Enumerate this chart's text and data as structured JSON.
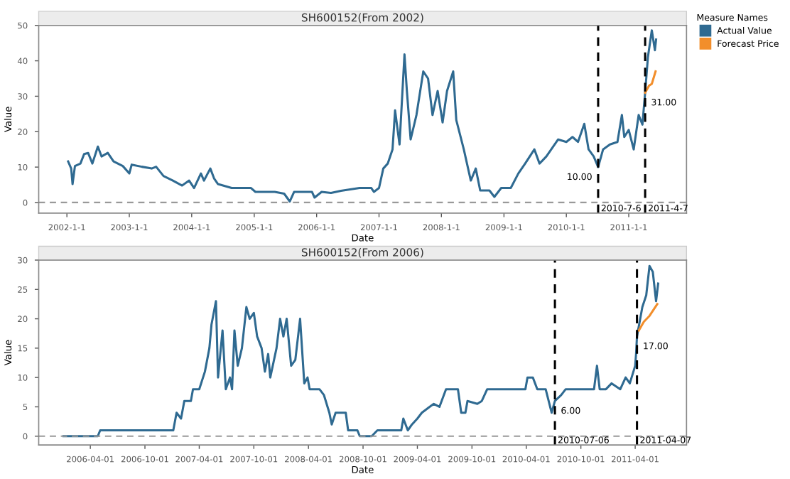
{
  "chart_data": [
    {
      "type": "line",
      "title": "SH600152(From 2002)",
      "xlabel": "Date",
      "ylabel": "Value",
      "legend_title": "Measure Names",
      "legend": "right",
      "xlim": [
        "2001-07-20",
        "2011-12-05"
      ],
      "xticks": [
        {
          "value": "2002-01-01",
          "label": "2002-1-1"
        },
        {
          "value": "2003-01-01",
          "label": "2003-1-1"
        },
        {
          "value": "2004-01-01",
          "label": "2004-1-1"
        },
        {
          "value": "2005-01-01",
          "label": "2005-1-1"
        },
        {
          "value": "2006-01-01",
          "label": "2006-1-1"
        },
        {
          "value": "2007-01-01",
          "label": "2007-1-1"
        },
        {
          "value": "2008-01-01",
          "label": "2008-1-1"
        },
        {
          "value": "2009-01-01",
          "label": "2009-1-1"
        },
        {
          "value": "2010-01-01",
          "label": "2010-1-1"
        },
        {
          "value": "2011-01-01",
          "label": "2011-1-1"
        }
      ],
      "ylim": [
        -3,
        50
      ],
      "yticks": [
        0,
        10,
        20,
        30,
        40,
        50
      ],
      "grid": false,
      "series": [
        {
          "name": "Actual Value",
          "color": "#2f6a91",
          "x": [
            "2002-01-08",
            "2002-01-26",
            "2002-02-03",
            "2002-02-17",
            "2002-03-21",
            "2002-04-12",
            "2002-05-05",
            "2002-05-30",
            "2002-07-01",
            "2002-07-23",
            "2002-08-28",
            "2002-10-01",
            "2002-11-24",
            "2003-01-01",
            "2003-01-15",
            "2003-03-15",
            "2003-05-12",
            "2003-06-07",
            "2003-07-20",
            "2003-09-13",
            "2003-11-06",
            "2003-12-17",
            "2004-01-15",
            "2004-02-24",
            "2004-03-13",
            "2004-04-19",
            "2004-05-11",
            "2004-06-03",
            "2004-08-22",
            "2004-12-13",
            "2005-01-08",
            "2005-05-01",
            "2005-06-25",
            "2005-07-28",
            "2005-08-22",
            "2005-12-05",
            "2005-12-20",
            "2006-01-30",
            "2006-03-26",
            "2006-05-23",
            "2006-09-09",
            "2006-11-17",
            "2006-12-02",
            "2007-01-01",
            "2007-01-26",
            "2007-02-21",
            "2007-03-21",
            "2007-04-05",
            "2007-05-01",
            "2007-05-30",
            "2007-06-13",
            "2007-07-05",
            "2007-08-08",
            "2007-09-17",
            "2007-10-15",
            "2007-11-10",
            "2007-12-10",
            "2008-01-08",
            "2008-02-03",
            "2008-03-10",
            "2008-03-28",
            "2008-05-11",
            "2008-06-21",
            "2008-07-20",
            "2008-08-15",
            "2008-10-08",
            "2008-11-06",
            "2008-12-16",
            "2009-02-10",
            "2009-03-26",
            "2009-05-05",
            "2009-06-28",
            "2009-07-28",
            "2009-09-06",
            "2009-11-14",
            "2010-01-01",
            "2010-02-06",
            "2010-03-10",
            "2010-04-16",
            "2010-05-11",
            "2010-06-10",
            "2010-07-06",
            "2010-08-04",
            "2010-09-13",
            "2010-10-27",
            "2010-11-22",
            "2010-12-06",
            "2011-01-01",
            "2011-01-30",
            "2011-02-28",
            "2011-03-22",
            "2011-04-07",
            "2011-04-23",
            "2011-05-16",
            "2011-06-03",
            "2011-06-10"
          ],
          "values": [
            11.6,
            9.6,
            5.2,
            10.3,
            11,
            13.7,
            14,
            11,
            15.8,
            13,
            14,
            11.6,
            10.3,
            8.2,
            10.7,
            10.1,
            9.6,
            10.1,
            7.5,
            6.2,
            4.8,
            6.2,
            4.1,
            8.2,
            6.2,
            9.6,
            6.8,
            5.2,
            4.1,
            4.1,
            3,
            3,
            2.5,
            0.3,
            3,
            3,
            1.4,
            3,
            2.7,
            3.3,
            4.1,
            4.1,
            3,
            4.1,
            9.6,
            11,
            15,
            26,
            16.4,
            41.8,
            31.5,
            17.8,
            24.7,
            37,
            35,
            24.7,
            31.5,
            22.6,
            31.5,
            37,
            23.3,
            15,
            6.2,
            9.6,
            3.4,
            3.4,
            1.6,
            4.1,
            4.1,
            8.2,
            11,
            15,
            11,
            13,
            17.8,
            17.1,
            18.5,
            17.1,
            22.2,
            15,
            13,
            10,
            15,
            16.4,
            17.1,
            24.7,
            18.5,
            20.5,
            15,
            24.7,
            22,
            31,
            41,
            48.6,
            43,
            46
          ]
        },
        {
          "name": "Forecast Price",
          "color": "#f28e2b",
          "x": [
            "2011-04-07",
            "2011-04-30",
            "2011-05-16",
            "2011-06-07"
          ],
          "values": [
            31,
            33,
            33.5,
            37
          ]
        }
      ],
      "ref_lines": [
        {
          "axis": "y",
          "value": 0,
          "color": "#999999",
          "line_style": "dashed"
        },
        {
          "axis": "x",
          "value": "2010-07-06",
          "label": "2010-7-6",
          "color": "#000000",
          "line_style": "dashed"
        },
        {
          "axis": "x",
          "value": "2011-04-07",
          "label": "2011-4-7",
          "color": "#000000",
          "line_style": "dashed"
        }
      ],
      "annotations": [
        {
          "text": "10.00",
          "x": "2010-07-06",
          "y": 10
        },
        {
          "text": "31.00",
          "x": "2011-04-07",
          "y": 31
        }
      ]
    },
    {
      "type": "line",
      "title": "SH600152(From 2006)",
      "xlabel": "Date",
      "ylabel": "Value",
      "xlim": [
        "2005-10-10",
        "2011-09-20"
      ],
      "xticks": [
        "2006-04-01",
        "2006-10-01",
        "2007-04-01",
        "2007-10-01",
        "2008-04-01",
        "2008-10-01",
        "2009-04-01",
        "2009-10-01",
        "2010-04-01",
        "2010-10-01",
        "2011-04-01"
      ],
      "ylim": [
        -1.5,
        30
      ],
      "yticks": [
        0,
        5,
        10,
        15,
        20,
        25,
        30
      ],
      "grid": false,
      "series": [
        {
          "color": "#2f6a91",
          "x": [
            "2006-01-01",
            "2006-04-26",
            "2006-05-04",
            "2007-01-04",
            "2007-01-15",
            "2007-01-30",
            "2007-02-10",
            "2007-03-04",
            "2007-03-11",
            "2007-04-01",
            "2007-04-20",
            "2007-05-05",
            "2007-05-12",
            "2007-05-27",
            "2007-06-03",
            "2007-06-18",
            "2007-06-29",
            "2007-07-13",
            "2007-07-20",
            "2007-07-28",
            "2007-08-08",
            "2007-08-22",
            "2007-09-06",
            "2007-09-17",
            "2007-10-01",
            "2007-10-12",
            "2007-10-27",
            "2007-11-07",
            "2007-11-18",
            "2007-11-25",
            "2007-12-16",
            "2007-12-28",
            "2008-01-08",
            "2008-01-19",
            "2008-02-03",
            "2008-02-17",
            "2008-03-04",
            "2008-03-18",
            "2008-03-29",
            "2008-04-05",
            "2008-05-08",
            "2008-05-23",
            "2008-06-10",
            "2008-06-18",
            "2008-07-01",
            "2008-08-04",
            "2008-08-12",
            "2008-09-12",
            "2008-09-20",
            "2008-10-08",
            "2008-10-30",
            "2008-11-18",
            "2009-02-06",
            "2009-02-13",
            "2009-02-28",
            "2009-03-14",
            "2009-04-01",
            "2009-04-16",
            "2009-05-12",
            "2009-05-26",
            "2009-06-14",
            "2009-07-06",
            "2009-08-15",
            "2009-08-26",
            "2009-09-09",
            "2009-09-16",
            "2009-10-19",
            "2009-11-03",
            "2009-11-21",
            "2010-03-29",
            "2010-04-05",
            "2010-04-23",
            "2010-05-08",
            "2010-06-05",
            "2010-06-25",
            "2010-07-06",
            "2010-07-27",
            "2010-08-11",
            "2010-11-14",
            "2010-11-24",
            "2010-12-03",
            "2010-12-24",
            "2011-01-12",
            "2011-02-10",
            "2011-02-28",
            "2011-03-14",
            "2011-04-01",
            "2011-04-04",
            "2011-04-07",
            "2011-04-25",
            "2011-05-08",
            "2011-05-19",
            "2011-05-30",
            "2011-06-10",
            "2011-06-17"
          ],
          "values": [
            0,
            0,
            1,
            1,
            4,
            3,
            6,
            6,
            8,
            8,
            11,
            15,
            19,
            23,
            10,
            18,
            8,
            10,
            8,
            18,
            12,
            15,
            22,
            20,
            21,
            17,
            15,
            11,
            14,
            10,
            15,
            20,
            17,
            20,
            12,
            13,
            20,
            9,
            10,
            8,
            8,
            7,
            4,
            2,
            4,
            4,
            1,
            1,
            0,
            0,
            0,
            1,
            1,
            3,
            1,
            2,
            3,
            4,
            5,
            5.5,
            5,
            8,
            8,
            4,
            4,
            6,
            5.5,
            6,
            8,
            8,
            10,
            10,
            8,
            8,
            4,
            6,
            7,
            8,
            8,
            12,
            8,
            8,
            9,
            8,
            10,
            9,
            12,
            14,
            17,
            22,
            24,
            29,
            28,
            23,
            26
          ]
        },
        {
          "color": "#f28e2b",
          "x": [
            "2011-04-13",
            "2011-04-30",
            "2011-05-19",
            "2011-06-14"
          ],
          "values": [
            18,
            19.5,
            20.5,
            22.5
          ]
        }
      ],
      "ref_lines": [
        {
          "axis": "y",
          "value": 0,
          "color": "#999999",
          "line_style": "dashed"
        },
        {
          "axis": "x",
          "value": "2010-07-06",
          "label": "2010-07-06",
          "color": "#000000",
          "line_style": "dashed"
        },
        {
          "axis": "x",
          "value": "2011-04-07",
          "label": "2011-04-07",
          "color": "#000000",
          "line_style": "dashed"
        }
      ],
      "annotations": [
        {
          "text": "6.00",
          "x": "2010-07-06",
          "y": 6
        },
        {
          "text": "17.00",
          "x": "2011-04-07",
          "y": 17
        }
      ]
    }
  ]
}
